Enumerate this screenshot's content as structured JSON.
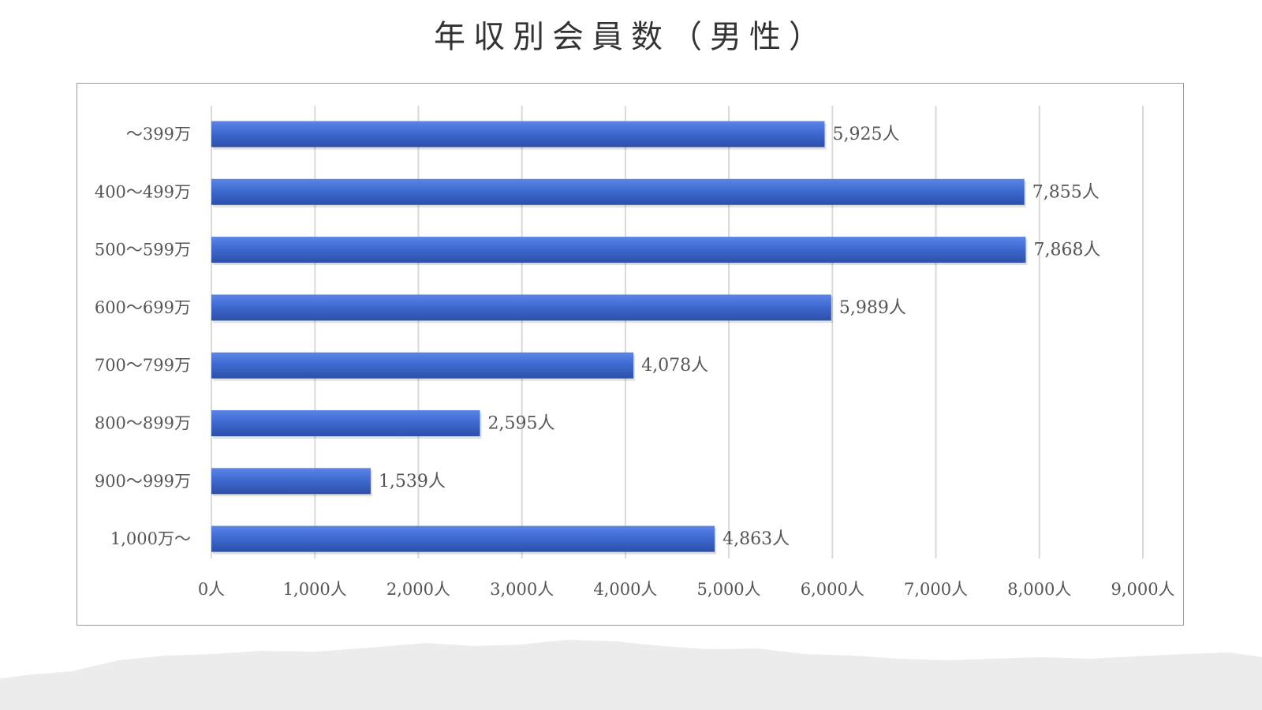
{
  "title": "年収別会員数（男性）",
  "colors": {
    "bar": "#3f6ad1",
    "bar_light": "#5b86e6",
    "bar_dark": "#2c50a8",
    "grid": "#d9d9d9",
    "ground": "#ececec"
  },
  "chart_data": {
    "type": "bar",
    "orientation": "horizontal",
    "title": "年収別会員数（男性）",
    "categories": [
      "～399万",
      "400～499万",
      "500～599万",
      "600～699万",
      "700～799万",
      "800～899万",
      "900～999万",
      "1,000万～"
    ],
    "values": [
      5925,
      7855,
      7868,
      5989,
      4078,
      2595,
      1539,
      4863
    ],
    "data_labels": [
      "5,925人",
      "7,855人",
      "7,868人",
      "5,989人",
      "4,078人",
      "2,595人",
      "1,539人",
      "4,863人"
    ],
    "xlim": [
      0,
      9000
    ],
    "xticks": [
      0,
      1000,
      2000,
      3000,
      4000,
      5000,
      6000,
      7000,
      8000,
      9000
    ],
    "xtick_labels": [
      "0人",
      "1,000人",
      "2,000人",
      "3,000人",
      "4,000人",
      "5,000人",
      "6,000人",
      "7,000人",
      "8,000人",
      "9,000人"
    ],
    "grid": true,
    "legend": "none"
  }
}
